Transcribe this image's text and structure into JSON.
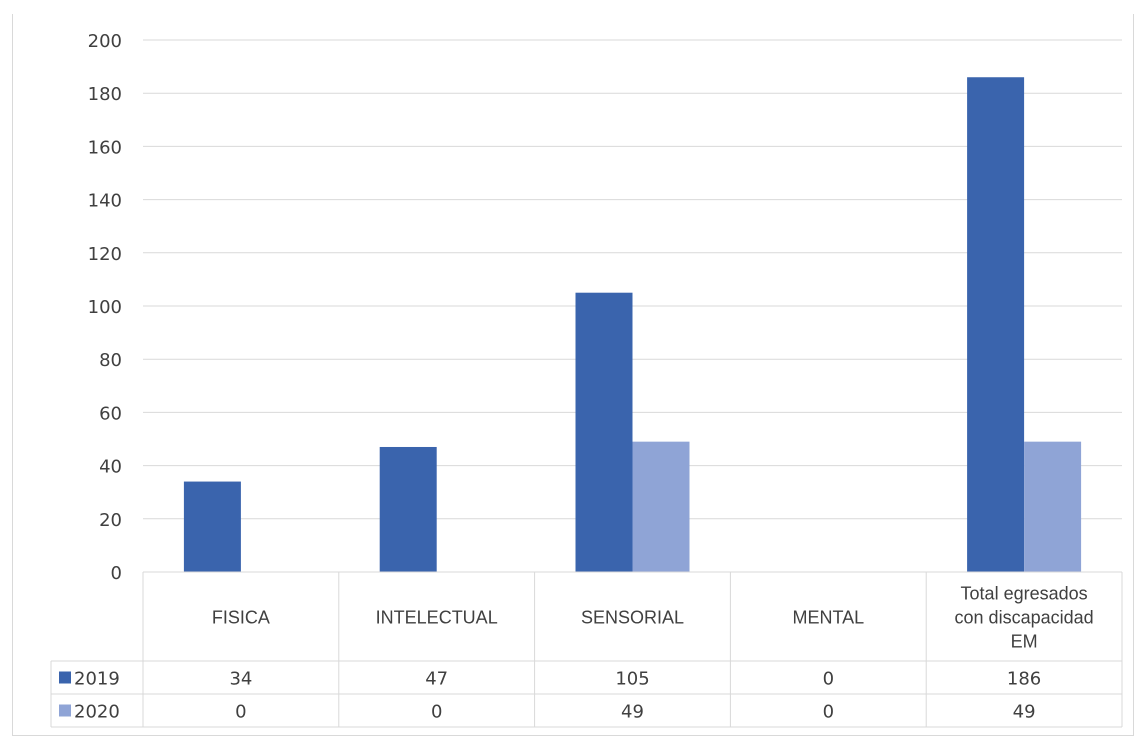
{
  "chart_data": {
    "type": "bar",
    "title": "",
    "categories": [
      "FISICA",
      "INTELECTUAL",
      "SENSORIAL",
      "MENTAL",
      "Total egresados con discapacidad EM"
    ],
    "category_lines": [
      [
        "FISICA"
      ],
      [
        "INTELECTUAL"
      ],
      [
        "SENSORIAL"
      ],
      [
        "MENTAL"
      ],
      [
        "Total egresados",
        "con discapacidad",
        "EM"
      ]
    ],
    "series": [
      {
        "name": "2019",
        "values": [
          34,
          47,
          105,
          0,
          186
        ],
        "labels": [
          "34",
          "47",
          "105",
          "0",
          "186"
        ],
        "color": "#3a64ad"
      },
      {
        "name": "2020",
        "values": [
          0,
          0,
          49,
          0,
          49
        ],
        "labels": [
          "0",
          "0",
          "49",
          "0",
          "49"
        ],
        "color": "#8fa4d6"
      }
    ],
    "ylim": [
      0,
      200
    ],
    "yticks": [
      0,
      20,
      40,
      60,
      80,
      100,
      120,
      140,
      160,
      180,
      200
    ],
    "grid": true,
    "legend": "data-table"
  },
  "colors": {
    "title": "#2f62b5",
    "grid": "#d9d9d9",
    "text": "#404040"
  }
}
